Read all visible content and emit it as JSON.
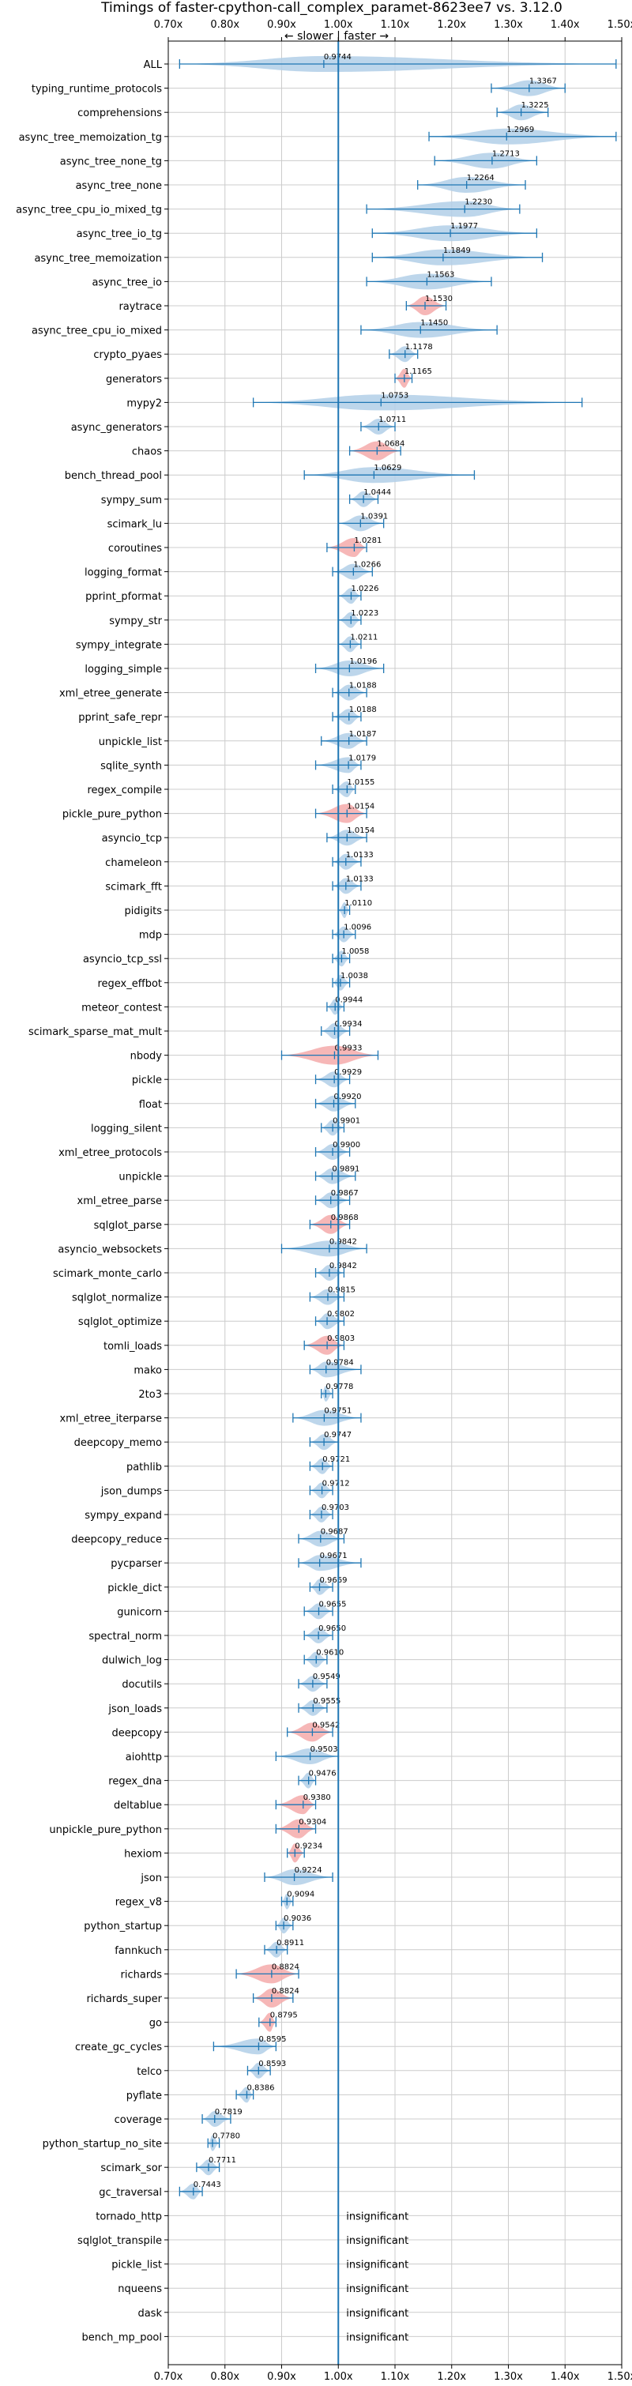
{
  "chart_data": {
    "type": "violin",
    "title": "Timings of faster-cpython-call_complex_paramet-8623ee7 vs. 3.12.0",
    "direction_label": "← slower | faster →",
    "xlim": [
      0.7,
      1.5
    ],
    "xticks": [
      0.7,
      0.8,
      0.9,
      1.0,
      1.1,
      1.2,
      1.3,
      1.4,
      1.5
    ],
    "xtick_labels": [
      "0.70x",
      "0.80x",
      "0.90x",
      "1.00x",
      "1.10x",
      "1.20x",
      "1.30x",
      "1.40x",
      "1.50x"
    ],
    "reference_line": 1.0,
    "colors": {
      "faster": "#b2cfe8",
      "slower": "#f4aaaa",
      "line": "#1f77b4",
      "grid": "#cccccc"
    },
    "benchmarks": [
      {
        "name": "ALL",
        "value": 0.9744,
        "label": "0.9744",
        "range": [
          0.72,
          1.49
        ],
        "color": "blue"
      },
      {
        "name": "typing_runtime_protocols",
        "value": 1.3367,
        "label": "1.3367",
        "range": [
          1.27,
          1.4
        ],
        "color": "blue"
      },
      {
        "name": "comprehensions",
        "value": 1.3225,
        "label": "1.3225",
        "range": [
          1.28,
          1.37
        ],
        "color": "blue"
      },
      {
        "name": "async_tree_memoization_tg",
        "value": 1.2969,
        "label": "1.2969",
        "range": [
          1.16,
          1.49
        ],
        "color": "blue"
      },
      {
        "name": "async_tree_none_tg",
        "value": 1.2713,
        "label": "1.2713",
        "range": [
          1.17,
          1.35
        ],
        "color": "blue"
      },
      {
        "name": "async_tree_none",
        "value": 1.2264,
        "label": "1.2264",
        "range": [
          1.14,
          1.33
        ],
        "color": "blue"
      },
      {
        "name": "async_tree_cpu_io_mixed_tg",
        "value": 1.223,
        "label": "1.2230",
        "range": [
          1.05,
          1.32
        ],
        "color": "blue"
      },
      {
        "name": "async_tree_io_tg",
        "value": 1.1977,
        "label": "1.1977",
        "range": [
          1.06,
          1.35
        ],
        "color": "blue"
      },
      {
        "name": "async_tree_memoization",
        "value": 1.1849,
        "label": "1.1849",
        "range": [
          1.06,
          1.36
        ],
        "color": "blue"
      },
      {
        "name": "async_tree_io",
        "value": 1.1563,
        "label": "1.1563",
        "range": [
          1.05,
          1.27
        ],
        "color": "blue"
      },
      {
        "name": "raytrace",
        "value": 1.153,
        "label": "1.1530",
        "range": [
          1.12,
          1.19
        ],
        "color": "red"
      },
      {
        "name": "async_tree_cpu_io_mixed",
        "value": 1.145,
        "label": "1.1450",
        "range": [
          1.04,
          1.28
        ],
        "color": "blue"
      },
      {
        "name": "crypto_pyaes",
        "value": 1.1178,
        "label": "1.1178",
        "range": [
          1.09,
          1.14
        ],
        "color": "blue"
      },
      {
        "name": "generators",
        "value": 1.1165,
        "label": "1.1165",
        "range": [
          1.1,
          1.13
        ],
        "color": "red"
      },
      {
        "name": "mypy2",
        "value": 1.0753,
        "label": "1.0753",
        "range": [
          0.85,
          1.43
        ],
        "color": "blue"
      },
      {
        "name": "async_generators",
        "value": 1.0711,
        "label": "1.0711",
        "range": [
          1.04,
          1.1
        ],
        "color": "blue"
      },
      {
        "name": "chaos",
        "value": 1.0684,
        "label": "1.0684",
        "range": [
          1.02,
          1.11
        ],
        "color": "red"
      },
      {
        "name": "bench_thread_pool",
        "value": 1.0629,
        "label": "1.0629",
        "range": [
          0.94,
          1.24
        ],
        "color": "blue"
      },
      {
        "name": "sympy_sum",
        "value": 1.0444,
        "label": "1.0444",
        "range": [
          1.02,
          1.07
        ],
        "color": "blue"
      },
      {
        "name": "scimark_lu",
        "value": 1.0391,
        "label": "1.0391",
        "range": [
          1.0,
          1.08
        ],
        "color": "blue"
      },
      {
        "name": "coroutines",
        "value": 1.0281,
        "label": "1.0281",
        "range": [
          0.98,
          1.05
        ],
        "color": "red"
      },
      {
        "name": "logging_format",
        "value": 1.0266,
        "label": "1.0266",
        "range": [
          0.99,
          1.06
        ],
        "color": "blue"
      },
      {
        "name": "pprint_pformat",
        "value": 1.0226,
        "label": "1.0226",
        "range": [
          1.0,
          1.04
        ],
        "color": "blue"
      },
      {
        "name": "sympy_str",
        "value": 1.0223,
        "label": "1.0223",
        "range": [
          1.0,
          1.04
        ],
        "color": "blue"
      },
      {
        "name": "sympy_integrate",
        "value": 1.0211,
        "label": "1.0211",
        "range": [
          1.0,
          1.04
        ],
        "color": "blue"
      },
      {
        "name": "logging_simple",
        "value": 1.0196,
        "label": "1.0196",
        "range": [
          0.96,
          1.08
        ],
        "color": "blue"
      },
      {
        "name": "xml_etree_generate",
        "value": 1.0188,
        "label": "1.0188",
        "range": [
          0.99,
          1.05
        ],
        "color": "blue"
      },
      {
        "name": "pprint_safe_repr",
        "value": 1.0188,
        "label": "1.0188",
        "range": [
          0.99,
          1.04
        ],
        "color": "blue"
      },
      {
        "name": "unpickle_list",
        "value": 1.0187,
        "label": "1.0187",
        "range": [
          0.97,
          1.05
        ],
        "color": "blue"
      },
      {
        "name": "sqlite_synth",
        "value": 1.0179,
        "label": "1.0179",
        "range": [
          0.96,
          1.04
        ],
        "color": "blue"
      },
      {
        "name": "regex_compile",
        "value": 1.0155,
        "label": "1.0155",
        "range": [
          0.99,
          1.03
        ],
        "color": "blue"
      },
      {
        "name": "pickle_pure_python",
        "value": 1.0154,
        "label": "1.0154",
        "range": [
          0.96,
          1.05
        ],
        "color": "red"
      },
      {
        "name": "asyncio_tcp",
        "value": 1.0154,
        "label": "1.0154",
        "range": [
          0.98,
          1.05
        ],
        "color": "blue"
      },
      {
        "name": "chameleon",
        "value": 1.0133,
        "label": "1.0133",
        "range": [
          0.99,
          1.04
        ],
        "color": "blue"
      },
      {
        "name": "scimark_fft",
        "value": 1.0133,
        "label": "1.0133",
        "range": [
          0.99,
          1.04
        ],
        "color": "blue"
      },
      {
        "name": "pidigits",
        "value": 1.011,
        "label": "1.0110",
        "range": [
          1.0,
          1.02
        ],
        "color": "blue"
      },
      {
        "name": "mdp",
        "value": 1.0096,
        "label": "1.0096",
        "range": [
          0.99,
          1.03
        ],
        "color": "blue"
      },
      {
        "name": "asyncio_tcp_ssl",
        "value": 1.0058,
        "label": "1.0058",
        "range": [
          0.99,
          1.02
        ],
        "color": "blue"
      },
      {
        "name": "regex_effbot",
        "value": 1.0038,
        "label": "1.0038",
        "range": [
          0.99,
          1.02
        ],
        "color": "blue"
      },
      {
        "name": "meteor_contest",
        "value": 0.9944,
        "label": "0.9944",
        "range": [
          0.98,
          1.01
        ],
        "color": "blue"
      },
      {
        "name": "scimark_sparse_mat_mult",
        "value": 0.9934,
        "label": "0.9934",
        "range": [
          0.97,
          1.02
        ],
        "color": "blue"
      },
      {
        "name": "nbody",
        "value": 0.9933,
        "label": "0.9933",
        "range": [
          0.9,
          1.07
        ],
        "color": "red"
      },
      {
        "name": "pickle",
        "value": 0.9929,
        "label": "0.9929",
        "range": [
          0.96,
          1.02
        ],
        "color": "blue"
      },
      {
        "name": "float",
        "value": 0.992,
        "label": "0.9920",
        "range": [
          0.96,
          1.03
        ],
        "color": "blue"
      },
      {
        "name": "logging_silent",
        "value": 0.9901,
        "label": "0.9901",
        "range": [
          0.97,
          1.01
        ],
        "color": "blue"
      },
      {
        "name": "xml_etree_protocols",
        "value": 0.99,
        "label": "0.9900",
        "range": [
          0.96,
          1.02
        ],
        "color": "blue"
      },
      {
        "name": "unpickle",
        "value": 0.9891,
        "label": "0.9891",
        "range": [
          0.96,
          1.03
        ],
        "color": "blue"
      },
      {
        "name": "xml_etree_parse",
        "value": 0.9867,
        "label": "0.9867",
        "range": [
          0.96,
          1.02
        ],
        "color": "blue"
      },
      {
        "name": "sqlglot_parse",
        "value": 0.9868,
        "label": "0.9868",
        "range": [
          0.95,
          1.02
        ],
        "color": "red"
      },
      {
        "name": "asyncio_websockets",
        "value": 0.9842,
        "label": "0.9842",
        "range": [
          0.9,
          1.05
        ],
        "color": "blue"
      },
      {
        "name": "scimark_monte_carlo",
        "value": 0.9842,
        "label": "0.9842",
        "range": [
          0.96,
          1.01
        ],
        "color": "blue"
      },
      {
        "name": "sqlglot_normalize",
        "value": 0.9815,
        "label": "0.9815",
        "range": [
          0.95,
          1.01
        ],
        "color": "blue"
      },
      {
        "name": "sqlglot_optimize",
        "value": 0.9802,
        "label": "0.9802",
        "range": [
          0.96,
          1.01
        ],
        "color": "blue"
      },
      {
        "name": "tomli_loads",
        "value": 0.9803,
        "label": "0.9803",
        "range": [
          0.94,
          1.01
        ],
        "color": "red"
      },
      {
        "name": "mako",
        "value": 0.9784,
        "label": "0.9784",
        "range": [
          0.95,
          1.04
        ],
        "color": "blue"
      },
      {
        "name": "2to3",
        "value": 0.9778,
        "label": "0.9778",
        "range": [
          0.97,
          0.99
        ],
        "color": "blue"
      },
      {
        "name": "xml_etree_iterparse",
        "value": 0.9751,
        "label": "0.9751",
        "range": [
          0.92,
          1.04
        ],
        "color": "blue"
      },
      {
        "name": "deepcopy_memo",
        "value": 0.9747,
        "label": "0.9747",
        "range": [
          0.95,
          1.0
        ],
        "color": "blue"
      },
      {
        "name": "pathlib",
        "value": 0.9721,
        "label": "0.9721",
        "range": [
          0.95,
          0.99
        ],
        "color": "blue"
      },
      {
        "name": "json_dumps",
        "value": 0.9712,
        "label": "0.9712",
        "range": [
          0.95,
          0.99
        ],
        "color": "blue"
      },
      {
        "name": "sympy_expand",
        "value": 0.9703,
        "label": "0.9703",
        "range": [
          0.95,
          0.99
        ],
        "color": "blue"
      },
      {
        "name": "deepcopy_reduce",
        "value": 0.9687,
        "label": "0.9687",
        "range": [
          0.93,
          1.01
        ],
        "color": "blue"
      },
      {
        "name": "pycparser",
        "value": 0.9671,
        "label": "0.9671",
        "range": [
          0.93,
          1.04
        ],
        "color": "blue"
      },
      {
        "name": "pickle_dict",
        "value": 0.9669,
        "label": "0.9669",
        "range": [
          0.95,
          0.99
        ],
        "color": "blue"
      },
      {
        "name": "gunicorn",
        "value": 0.9655,
        "label": "0.9655",
        "range": [
          0.94,
          0.99
        ],
        "color": "blue"
      },
      {
        "name": "spectral_norm",
        "value": 0.965,
        "label": "0.9650",
        "range": [
          0.94,
          0.99
        ],
        "color": "blue"
      },
      {
        "name": "dulwich_log",
        "value": 0.961,
        "label": "0.9610",
        "range": [
          0.94,
          0.98
        ],
        "color": "blue"
      },
      {
        "name": "docutils",
        "value": 0.9549,
        "label": "0.9549",
        "range": [
          0.93,
          0.98
        ],
        "color": "blue"
      },
      {
        "name": "json_loads",
        "value": 0.9555,
        "label": "0.9555",
        "range": [
          0.93,
          0.98
        ],
        "color": "blue"
      },
      {
        "name": "deepcopy",
        "value": 0.9542,
        "label": "0.9542",
        "range": [
          0.91,
          0.99
        ],
        "color": "red"
      },
      {
        "name": "aiohttp",
        "value": 0.9503,
        "label": "0.9503",
        "range": [
          0.89,
          1.0
        ],
        "color": "blue"
      },
      {
        "name": "regex_dna",
        "value": 0.9476,
        "label": "0.9476",
        "range": [
          0.93,
          0.96
        ],
        "color": "blue"
      },
      {
        "name": "deltablue",
        "value": 0.938,
        "label": "0.9380",
        "range": [
          0.89,
          0.96
        ],
        "color": "red"
      },
      {
        "name": "unpickle_pure_python",
        "value": 0.9304,
        "label": "0.9304",
        "range": [
          0.89,
          0.96
        ],
        "color": "red"
      },
      {
        "name": "hexiom",
        "value": 0.9234,
        "label": "0.9234",
        "range": [
          0.91,
          0.94
        ],
        "color": "red"
      },
      {
        "name": "json",
        "value": 0.9224,
        "label": "0.9224",
        "range": [
          0.87,
          0.99
        ],
        "color": "blue"
      },
      {
        "name": "regex_v8",
        "value": 0.9094,
        "label": "0.9094",
        "range": [
          0.9,
          0.92
        ],
        "color": "blue"
      },
      {
        "name": "python_startup",
        "value": 0.9036,
        "label": "0.9036",
        "range": [
          0.89,
          0.92
        ],
        "color": "blue"
      },
      {
        "name": "fannkuch",
        "value": 0.8911,
        "label": "0.8911",
        "range": [
          0.87,
          0.91
        ],
        "color": "blue"
      },
      {
        "name": "richards",
        "value": 0.8824,
        "label": "0.8824",
        "range": [
          0.82,
          0.93
        ],
        "color": "red"
      },
      {
        "name": "richards_super",
        "value": 0.8824,
        "label": "0.8824",
        "range": [
          0.85,
          0.92
        ],
        "color": "red"
      },
      {
        "name": "go",
        "value": 0.8795,
        "label": "0.8795",
        "range": [
          0.86,
          0.89
        ],
        "color": "red"
      },
      {
        "name": "create_gc_cycles",
        "value": 0.8595,
        "label": "0.8595",
        "range": [
          0.78,
          0.89
        ],
        "color": "blue"
      },
      {
        "name": "telco",
        "value": 0.8593,
        "label": "0.8593",
        "range": [
          0.84,
          0.88
        ],
        "color": "blue"
      },
      {
        "name": "pyflate",
        "value": 0.8386,
        "label": "0.8386",
        "range": [
          0.82,
          0.85
        ],
        "color": "blue"
      },
      {
        "name": "coverage",
        "value": 0.7819,
        "label": "0.7819",
        "range": [
          0.76,
          0.81
        ],
        "color": "blue"
      },
      {
        "name": "python_startup_no_site",
        "value": 0.778,
        "label": "0.7780",
        "range": [
          0.77,
          0.79
        ],
        "color": "blue"
      },
      {
        "name": "scimark_sor",
        "value": 0.7711,
        "label": "0.7711",
        "range": [
          0.75,
          0.79
        ],
        "color": "blue"
      },
      {
        "name": "gc_traversal",
        "value": 0.7443,
        "label": "0.7443",
        "range": [
          0.72,
          0.76
        ],
        "color": "blue"
      },
      {
        "name": "tornado_http",
        "value": null,
        "label": "insignificant"
      },
      {
        "name": "sqlglot_transpile",
        "value": null,
        "label": "insignificant"
      },
      {
        "name": "pickle_list",
        "value": null,
        "label": "insignificant"
      },
      {
        "name": "nqueens",
        "value": null,
        "label": "insignificant"
      },
      {
        "name": "dask",
        "value": null,
        "label": "insignificant"
      },
      {
        "name": "bench_mp_pool",
        "value": null,
        "label": "insignificant"
      }
    ]
  }
}
